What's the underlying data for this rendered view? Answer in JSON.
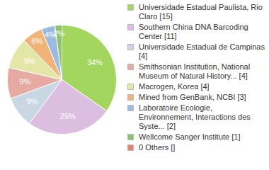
{
  "chart_data": {
    "type": "pie",
    "categories": [
      "Universidade Estadual Paulista, Rio Claro [15]",
      "Southern China DNA Barcoding Center [11]",
      "Universidade Estadual de Campinas [4]",
      "Smithsonian Institution, National Museum of Natural History... [4]",
      "Macrogen, Korea [4]",
      "Mined from GenBank, NCBI [3]",
      "Laboratoire Ecologie, Environnement, Interactions des Syste... [2]",
      "Wellcome Sanger Institute [1]",
      "0 Others []"
    ],
    "values": [
      34,
      25,
      9,
      9,
      9,
      6,
      4,
      2,
      0
    ],
    "value_labels": [
      "34%",
      "25%",
      "9%",
      "9%",
      "9%",
      "6%",
      "4%",
      "2%",
      null
    ],
    "colors": [
      "#a2d65e",
      "#dcbfe0",
      "#c9d7e4",
      "#e6aaa2",
      "#e4e6a8",
      "#f0b478",
      "#9dbbe0",
      "#8cc46a",
      "#e0856a"
    ],
    "data_labels": true,
    "legend": "right"
  }
}
